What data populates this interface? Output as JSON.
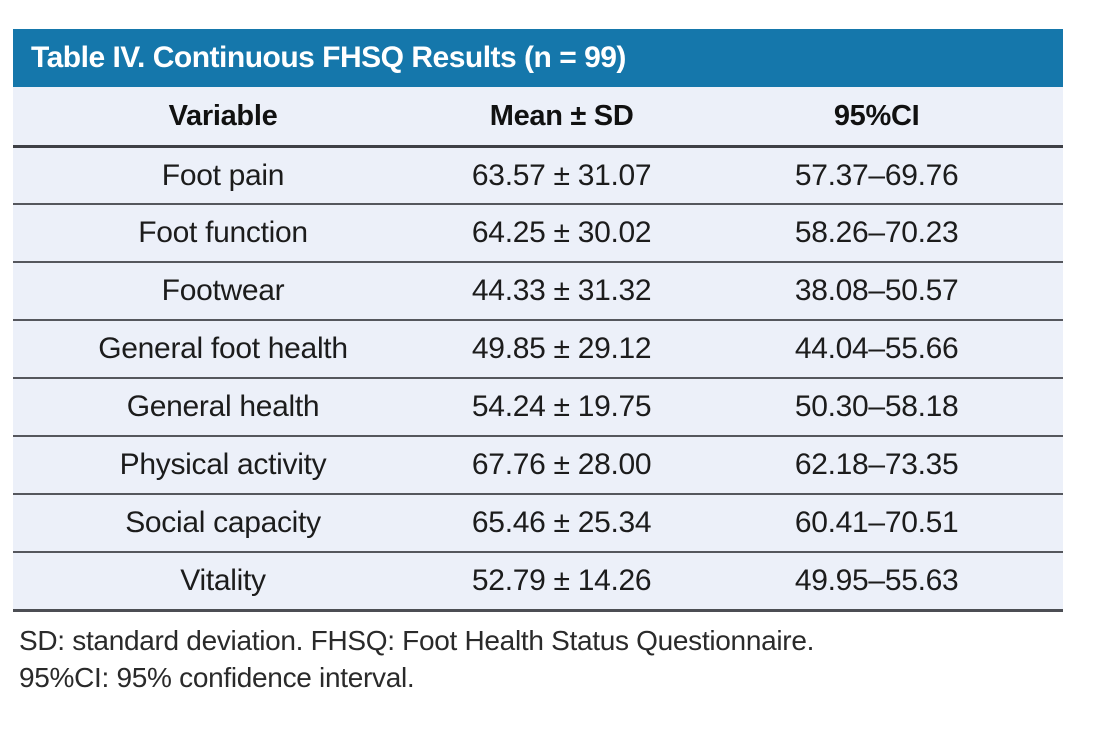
{
  "table": {
    "title": "Table IV. Continuous FHSQ Results (n = 99)",
    "columns": [
      "Variable",
      "Mean ± SD",
      "95%CI"
    ],
    "rows": [
      {
        "variable": "Foot pain",
        "mean_sd": "63.57 ± 31.07",
        "ci": "57.37–69.76"
      },
      {
        "variable": "Foot function",
        "mean_sd": "64.25 ± 30.02",
        "ci": "58.26–70.23"
      },
      {
        "variable": "Footwear",
        "mean_sd": "44.33 ± 31.32",
        "ci": "38.08–50.57"
      },
      {
        "variable": "General foot health",
        "mean_sd": "49.85 ± 29.12",
        "ci": "44.04–55.66"
      },
      {
        "variable": "General health",
        "mean_sd": "54.24 ± 19.75",
        "ci": "50.30–58.18"
      },
      {
        "variable": "Physical activity",
        "mean_sd": "67.76 ± 28.00",
        "ci": "62.18–73.35"
      },
      {
        "variable": "Social capacity",
        "mean_sd": "65.46 ± 25.34",
        "ci": "60.41–70.51"
      },
      {
        "variable": "Vitality",
        "mean_sd": "52.79 ± 14.26",
        "ci": "49.95–55.63"
      }
    ],
    "footnotes": [
      "SD: standard deviation. FHSQ: Foot Health Status Questionnaire.",
      "95%CI: 95% confidence interval."
    ],
    "sample_size": "99",
    "colors": {
      "header_bg": "#1577ab",
      "header_text": "#ffffff",
      "row_bg": "#ecf0f9",
      "separator": "#55575d",
      "body_text": "#1c1c1c"
    }
  }
}
